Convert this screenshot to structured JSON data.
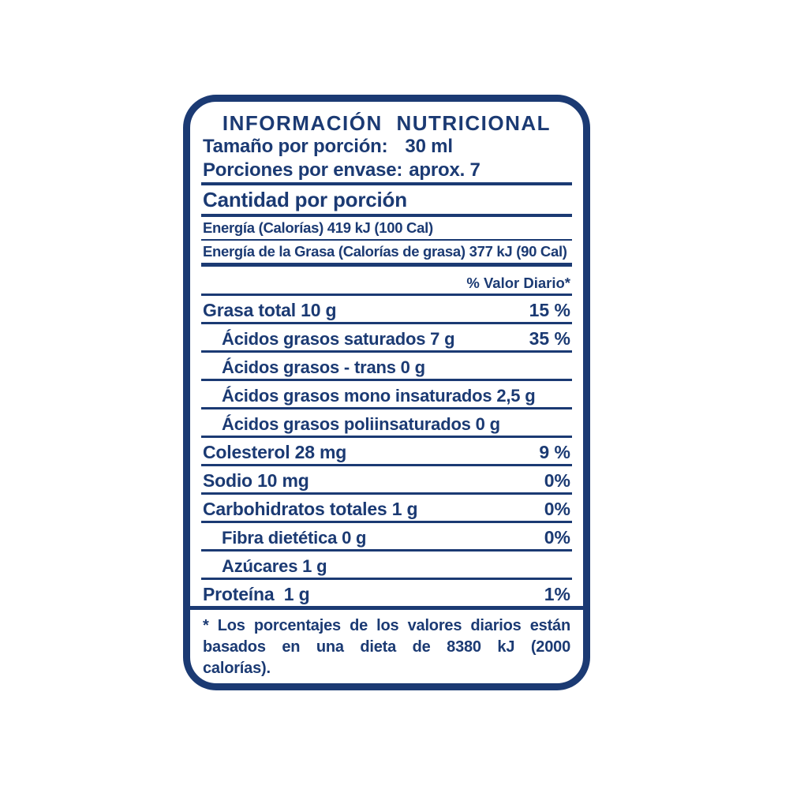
{
  "label": {
    "title": "INFORMACIÓN NUTRICIONAL",
    "serving": {
      "size_label": "Tamaño por porción:",
      "size_value": "30 ml",
      "per_container_label": "Porciones por envase:",
      "per_container_value": "aprox. 7"
    },
    "amount_header": "Cantidad por porción",
    "energy": {
      "calories": "Energía (Calorías) 419 kJ (100 Cal)",
      "fat_calories": "Energía de la Grasa (Calorías de grasa) 377 kJ (90 Cal)"
    },
    "daily_value_header": "% Valor Diario*",
    "nutrients": [
      {
        "name": "Grasa total 10 g",
        "dv": "15 %"
      },
      {
        "name": "Ácidos grasos saturados 7 g",
        "dv": "35 %"
      },
      {
        "name": "Ácidos grasos - trans 0 g",
        "dv": ""
      },
      {
        "name": "Ácidos grasos mono insaturados 2,5 g",
        "dv": ""
      },
      {
        "name": "Ácidos grasos poliinsaturados 0 g",
        "dv": ""
      },
      {
        "name": "Colesterol 28 mg",
        "dv": "9 %"
      },
      {
        "name": "Sodio 10 mg",
        "dv": "0%"
      },
      {
        "name": "Carbohidratos totales 1 g",
        "dv": "0%"
      },
      {
        "name": "Fibra dietética 0 g",
        "dv": "0%"
      },
      {
        "name": "Azúcares 1 g",
        "dv": ""
      },
      {
        "name": "Proteína  1 g",
        "dv": "1%"
      }
    ],
    "footnote": "* Los porcentajes de los valores diarios están basados en una dieta de 8380 kJ (2000 calorías).",
    "colors": {
      "ink": "#1b3a73",
      "background": "#ffffff"
    }
  }
}
